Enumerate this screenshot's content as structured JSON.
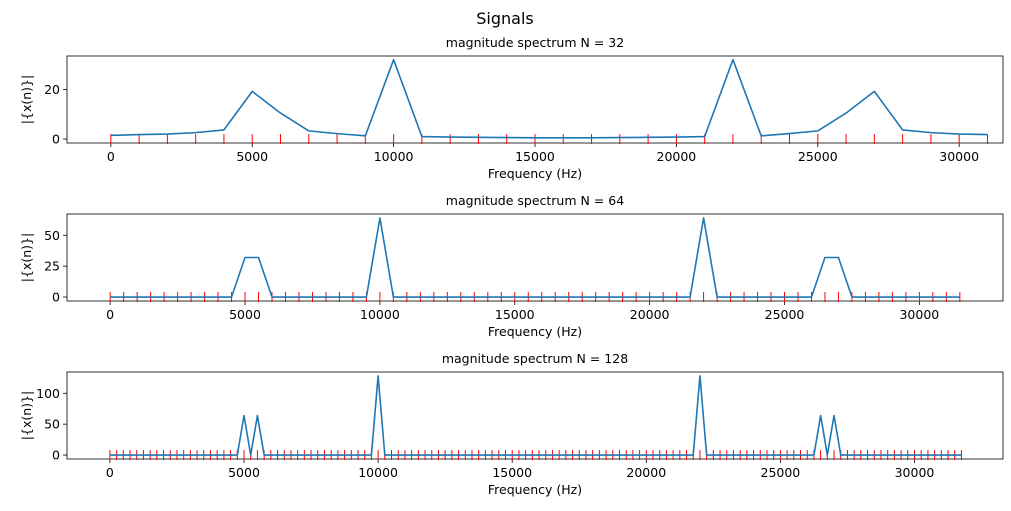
{
  "figure": {
    "suptitle": "Signals"
  },
  "chart_data": [
    {
      "type": "line",
      "title": "magnitude spectrum N = 32",
      "xlabel": "Frequency (Hz)",
      "ylabel": "|{x(n)}|",
      "xlim": [
        -1550,
        31550
      ],
      "ylim": [
        -1.6,
        33.6
      ],
      "xticks": [
        0,
        5000,
        10000,
        15000,
        20000,
        25000,
        30000
      ],
      "yticks": [
        0,
        20
      ],
      "grid": false,
      "line_color": "#1f77b4",
      "marker_color": "#ff0000",
      "x": [
        0,
        1000,
        2000,
        3000,
        4000,
        5000,
        6000,
        7000,
        8000,
        9000,
        10000,
        11000,
        12000,
        13000,
        14000,
        15000,
        16000,
        17000,
        18000,
        19000,
        20000,
        21000,
        22000,
        23000,
        24000,
        25000,
        26000,
        27000,
        28000,
        29000,
        30000,
        31000
      ],
      "values": [
        1.5,
        1.8,
        2.0,
        2.6,
        3.7,
        19.3,
        10.5,
        3.3,
        2.2,
        1.3,
        32.1,
        1.0,
        0.8,
        0.7,
        0.6,
        0.5,
        0.5,
        0.5,
        0.6,
        0.7,
        0.8,
        1.0,
        32.1,
        1.3,
        2.2,
        3.3,
        10.5,
        19.3,
        3.7,
        2.6,
        2.0,
        1.8
      ]
    },
    {
      "type": "line",
      "title": "magnitude spectrum N = 64",
      "xlabel": "Frequency (Hz)",
      "ylabel": "|{x(n)}|",
      "xlim": [
        -1600,
        33100
      ],
      "ylim": [
        -3.2,
        67.2
      ],
      "xticks": [
        0,
        5000,
        10000,
        15000,
        20000,
        25000,
        30000
      ],
      "yticks": [
        0,
        25,
        50
      ],
      "grid": false,
      "line_color": "#1f77b4",
      "marker_color": "#ff0000",
      "step": 500,
      "count": 64,
      "baseline": 0,
      "peaks": [
        {
          "x": 5000,
          "y": 32
        },
        {
          "x": 5500,
          "y": 32
        },
        {
          "x": 10000,
          "y": 64
        },
        {
          "x": 22000,
          "y": 64
        },
        {
          "x": 26500,
          "y": 32
        },
        {
          "x": 27000,
          "y": 32
        }
      ]
    },
    {
      "type": "line",
      "title": "magnitude spectrum N = 128",
      "xlabel": "Frequency (Hz)",
      "ylabel": "|{x(n)}|",
      "xlim": [
        -1600,
        33300
      ],
      "ylim": [
        -6.4,
        134.4
      ],
      "xticks": [
        0,
        5000,
        10000,
        15000,
        20000,
        25000,
        30000
      ],
      "yticks": [
        0,
        50,
        100
      ],
      "grid": false,
      "line_color": "#1f77b4",
      "marker_color": "#ff0000",
      "step": 250,
      "count": 128,
      "baseline": 0,
      "peaks": [
        {
          "x": 5000,
          "y": 64
        },
        {
          "x": 5500,
          "y": 64
        },
        {
          "x": 10000,
          "y": 128
        },
        {
          "x": 22000,
          "y": 128
        },
        {
          "x": 26500,
          "y": 64
        },
        {
          "x": 27000,
          "y": 64
        }
      ]
    }
  ]
}
